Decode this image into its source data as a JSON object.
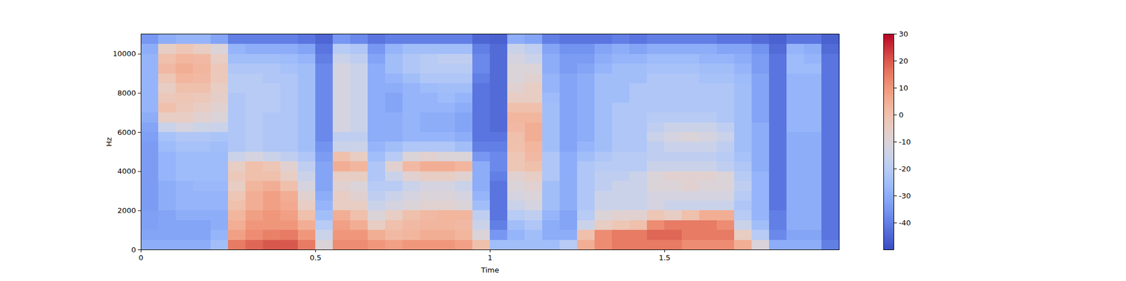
{
  "chart_data": {
    "type": "heatmap",
    "x_label": "Time",
    "y_label": "Hz",
    "xlim": [
      0,
      2.0
    ],
    "ylim": [
      0,
      11025
    ],
    "xticks": [
      0,
      0.5,
      1,
      1.5
    ],
    "yticks": [
      0,
      2000,
      4000,
      6000,
      8000,
      10000
    ],
    "color": "coolwarm",
    "x_edges": [
      0,
      0.05,
      0.1,
      0.15,
      0.2,
      0.25,
      0.3,
      0.35,
      0.4,
      0.45,
      0.5,
      0.55,
      0.6,
      0.65,
      0.7,
      0.75,
      0.8,
      0.85,
      0.9,
      0.95,
      1.0,
      1.05,
      1.1,
      1.15,
      1.2,
      1.25,
      1.3,
      1.35,
      1.4,
      1.45,
      1.5,
      1.55,
      1.6,
      1.65,
      1.7,
      1.75,
      1.8,
      1.85,
      1.9,
      1.95,
      2.0
    ],
    "y_edges": [
      0,
      500,
      1000,
      1500,
      2000,
      2500,
      3000,
      3500,
      4000,
      4500,
      5000,
      5500,
      6000,
      6500,
      7000,
      7500,
      8000,
      8500,
      9000,
      9500,
      10000,
      10500,
      11025
    ],
    "cells": [
      [
        -30,
        -32,
        -33,
        -33,
        -34,
        -34,
        -34,
        -34,
        -34,
        -34,
        -34,
        -33,
        -32,
        -30,
        -28,
        -28,
        -28,
        -28,
        -28,
        -28,
        -30,
        -35
      ],
      [
        -30,
        -32,
        -32,
        -32,
        -30,
        -30,
        -30,
        -28,
        -28,
        -28,
        -26,
        -24,
        -15,
        -5,
        0,
        -3,
        -5,
        -2,
        2,
        0,
        -5,
        -30
      ],
      [
        -30,
        -32,
        -32,
        -30,
        -28,
        -28,
        -28,
        -26,
        -26,
        -26,
        -24,
        -22,
        -12,
        -5,
        -3,
        -2,
        0,
        3,
        5,
        3,
        -2,
        -28
      ],
      [
        -30,
        -32,
        -32,
        -30,
        -28,
        -28,
        -27,
        -26,
        -26,
        -26,
        -24,
        -22,
        -14,
        -8,
        -5,
        -3,
        0,
        2,
        3,
        2,
        -5,
        -28
      ],
      [
        -25,
        -28,
        -30,
        -30,
        -28,
        -28,
        -27,
        -26,
        -26,
        -26,
        -25,
        -23,
        -15,
        -10,
        -8,
        -6,
        -5,
        -3,
        -3,
        -5,
        -10,
        -32
      ],
      [
        15,
        8,
        5,
        3,
        0,
        -2,
        -5,
        -3,
        -5,
        -15,
        -22,
        -22,
        -22,
        -22,
        -22,
        -22,
        -20,
        -20,
        -22,
        -25,
        -28,
        -40
      ],
      [
        18,
        12,
        10,
        8,
        5,
        5,
        3,
        0,
        0,
        -12,
        -20,
        -20,
        -20,
        -20,
        -20,
        -20,
        -20,
        -20,
        -22,
        -25,
        -30,
        -40
      ],
      [
        20,
        14,
        10,
        10,
        8,
        8,
        5,
        0,
        -2,
        -15,
        -22,
        -22,
        -22,
        -22,
        -20,
        -20,
        -20,
        -22,
        -22,
        -25,
        -30,
        -40
      ],
      [
        20,
        15,
        10,
        8,
        6,
        5,
        0,
        -5,
        -8,
        -18,
        -22,
        -22,
        -22,
        -22,
        -22,
        -22,
        -22,
        -22,
        -24,
        -26,
        -30,
        -40
      ],
      [
        15,
        10,
        5,
        0,
        -5,
        -8,
        -12,
        -15,
        -18,
        -22,
        -25,
        -25,
        -25,
        -25,
        -25,
        -25,
        -25,
        -25,
        -25,
        -28,
        -32,
        -42
      ],
      [
        -10,
        -15,
        -20,
        -25,
        -28,
        -30,
        -32,
        -32,
        -32,
        -34,
        -36,
        -38,
        -38,
        -38,
        -38,
        -38,
        -38,
        -38,
        -38,
        -40,
        -42,
        -45
      ],
      [
        12,
        10,
        8,
        5,
        -5,
        -5,
        -8,
        -5,
        5,
        0,
        -15,
        -18,
        -12,
        -12,
        -12,
        -12,
        -12,
        -12,
        -12,
        -15,
        -20,
        -35
      ],
      [
        12,
        10,
        5,
        0,
        -5,
        -8,
        -10,
        -5,
        3,
        -5,
        -15,
        -18,
        -15,
        -15,
        -15,
        -15,
        -15,
        -15,
        -15,
        -18,
        -22,
        -38
      ],
      [
        10,
        5,
        -5,
        -10,
        -15,
        -18,
        -20,
        -22,
        -22,
        -25,
        -28,
        -30,
        -30,
        -30,
        -30,
        -30,
        -30,
        -30,
        -30,
        -32,
        -35,
        -42
      ],
      [
        8,
        2,
        0,
        -5,
        -12,
        -15,
        -20,
        -15,
        -8,
        -20,
        -25,
        -30,
        -30,
        -30,
        -32,
        -32,
        -30,
        -28,
        -25,
        -25,
        -28,
        -40
      ],
      [
        10,
        3,
        2,
        0,
        -10,
        -12,
        -15,
        -8,
        2,
        -10,
        -22,
        -28,
        -28,
        -28,
        -28,
        -28,
        -28,
        -25,
        -22,
        -22,
        -25,
        -40
      ],
      [
        10,
        5,
        3,
        2,
        -8,
        -10,
        -12,
        -5,
        5,
        -8,
        -22,
        -28,
        -30,
        -30,
        -28,
        -28,
        -26,
        -22,
        -20,
        -20,
        -25,
        -40
      ],
      [
        10,
        5,
        3,
        3,
        -8,
        -10,
        -12,
        -5,
        5,
        -10,
        -22,
        -28,
        -30,
        -30,
        -28,
        -26,
        -25,
        -22,
        -20,
        -18,
        -25,
        -40
      ],
      [
        8,
        3,
        2,
        3,
        -10,
        -12,
        -15,
        -8,
        3,
        -10,
        -25,
        -30,
        -32,
        -32,
        -30,
        -28,
        -25,
        -22,
        -20,
        -18,
        -25,
        -40
      ],
      [
        0,
        -10,
        -15,
        -18,
        -25,
        -28,
        -30,
        -30,
        -30,
        -35,
        -40,
        -42,
        -42,
        -42,
        -42,
        -42,
        -42,
        -40,
        -38,
        -38,
        -40,
        -45
      ],
      [
        -25,
        -35,
        -40,
        -42,
        -42,
        -42,
        -42,
        -40,
        -38,
        -38,
        -40,
        -42,
        -44,
        -44,
        -44,
        -44,
        -44,
        -44,
        -44,
        -44,
        -44,
        -46
      ],
      [
        -25,
        -28,
        -25,
        -20,
        -15,
        -12,
        -10,
        -8,
        -2,
        -2,
        0,
        0,
        2,
        3,
        0,
        -5,
        -8,
        -10,
        -10,
        -12,
        -15,
        -30
      ],
      [
        -25,
        -25,
        -22,
        -18,
        -12,
        -10,
        -8,
        -5,
        0,
        2,
        3,
        5,
        5,
        3,
        0,
        -5,
        -5,
        -8,
        -10,
        -15,
        -18,
        -32
      ],
      [
        -25,
        -30,
        -30,
        -28,
        -25,
        -25,
        -25,
        -22,
        -22,
        -22,
        -25,
        -25,
        -25,
        -25,
        -25,
        -26,
        -28,
        -28,
        -30,
        -30,
        -32,
        -40
      ],
      [
        -20,
        -30,
        -32,
        -32,
        -30,
        -30,
        -30,
        -30,
        -30,
        -30,
        -32,
        -32,
        -32,
        -32,
        -32,
        -32,
        -32,
        -32,
        -34,
        -34,
        -36,
        -42
      ],
      [
        5,
        0,
        -15,
        -20,
        -22,
        -22,
        -22,
        -22,
        -22,
        -25,
        -28,
        -30,
        -30,
        -30,
        -30,
        -30,
        -30,
        -30,
        -32,
        -34,
        -36,
        -42
      ],
      [
        12,
        12,
        -5,
        -10,
        -15,
        -15,
        -18,
        -18,
        -20,
        -22,
        -25,
        -25,
        -25,
        -25,
        -25,
        -25,
        -25,
        -25,
        -28,
        -30,
        -32,
        -42
      ],
      [
        15,
        15,
        -2,
        -8,
        -15,
        -15,
        -15,
        -18,
        -20,
        -20,
        -22,
        -22,
        -22,
        -22,
        -22,
        -25,
        -25,
        -25,
        -25,
        -28,
        -30,
        -40
      ],
      [
        15,
        15,
        0,
        -8,
        -15,
        -15,
        -15,
        -15,
        -20,
        -20,
        -22,
        -22,
        -22,
        -22,
        -22,
        -22,
        -22,
        -25,
        -25,
        -28,
        -32,
        -42
      ],
      [
        15,
        18,
        12,
        -2,
        -12,
        -12,
        -10,
        -10,
        -15,
        -18,
        -18,
        -15,
        -18,
        -20,
        -22,
        -22,
        -22,
        -22,
        -24,
        -26,
        -30,
        -40
      ],
      [
        15,
        18,
        15,
        -5,
        -15,
        -12,
        -10,
        -8,
        -15,
        -18,
        -15,
        -12,
        -15,
        -20,
        -22,
        -22,
        -22,
        -22,
        -24,
        -26,
        -30,
        -40
      ],
      [
        12,
        15,
        15,
        0,
        -15,
        -12,
        -8,
        -8,
        -15,
        -18,
        -15,
        -10,
        -15,
        -20,
        -22,
        -22,
        -22,
        -22,
        -24,
        -26,
        -30,
        -40
      ],
      [
        12,
        15,
        15,
        5,
        -15,
        -12,
        -10,
        -8,
        -15,
        -18,
        -15,
        -12,
        -15,
        -20,
        -22,
        -22,
        -22,
        -24,
        -25,
        -28,
        -30,
        -40
      ],
      [
        12,
        15,
        12,
        5,
        -15,
        -12,
        -10,
        -10,
        -18,
        -20,
        -18,
        -15,
        -18,
        -22,
        -22,
        -22,
        -22,
        -24,
        -25,
        -28,
        -32,
        -42
      ],
      [
        5,
        -5,
        -15,
        -20,
        -22,
        -20,
        -18,
        -20,
        -22,
        -24,
        -25,
        -25,
        -25,
        -25,
        -25,
        -25,
        -25,
        -26,
        -28,
        -30,
        -32,
        -42
      ],
      [
        -10,
        -20,
        -25,
        -28,
        -28,
        -28,
        -28,
        -28,
        -30,
        -30,
        -30,
        -30,
        -30,
        -32,
        -32,
        -32,
        -32,
        -32,
        -34,
        -34,
        -36,
        -44
      ],
      [
        -30,
        -38,
        -40,
        -40,
        -42,
        -42,
        -42,
        -42,
        -42,
        -42,
        -42,
        -42,
        -42,
        -42,
        -42,
        -42,
        -42,
        -42,
        -42,
        -42,
        -44,
        -46
      ],
      [
        -30,
        -32,
        -30,
        -30,
        -30,
        -30,
        -30,
        -30,
        -30,
        -30,
        -30,
        -30,
        -28,
        -28,
        -28,
        -28,
        -28,
        -28,
        -26,
        -26,
        -28,
        -42
      ],
      [
        -30,
        -32,
        -30,
        -30,
        -30,
        -30,
        -30,
        -30,
        -30,
        -30,
        -30,
        -30,
        -28,
        -28,
        -28,
        -28,
        -28,
        -28,
        -26,
        -28,
        -30,
        -42
      ],
      [
        -40,
        -42,
        -42,
        -42,
        -42,
        -42,
        -42,
        -42,
        -42,
        -42,
        -42,
        -42,
        -42,
        -42,
        -42,
        -42,
        -42,
        -42,
        -42,
        -42,
        -44,
        -46
      ]
    ],
    "colorbar": {
      "range": [
        -50,
        30
      ],
      "ticks": [
        -40,
        -30,
        -20,
        -10,
        0,
        10,
        20,
        30
      ]
    }
  }
}
